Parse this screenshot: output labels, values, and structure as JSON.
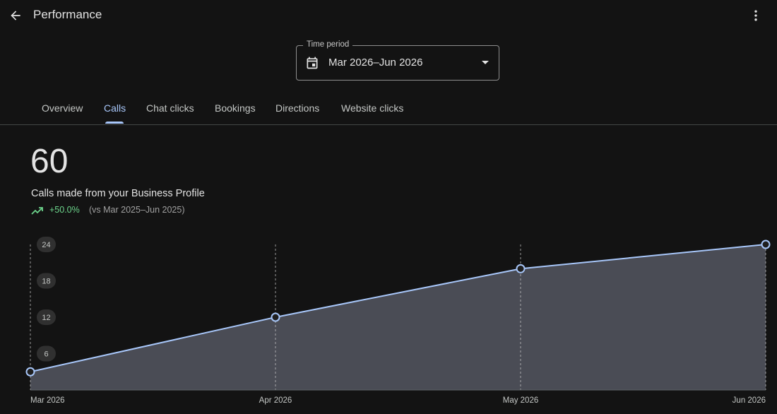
{
  "header": {
    "title": "Performance",
    "back_icon": "arrow-back-icon",
    "more_icon": "more-vert-icon"
  },
  "time_period": {
    "label": "Time period",
    "value": "Mar 2026–Jun 2026",
    "icon": "calendar-icon",
    "caret_icon": "dropdown-caret-icon"
  },
  "tabs": [
    {
      "label": "Overview",
      "active": false
    },
    {
      "label": "Calls",
      "active": true
    },
    {
      "label": "Chat clicks",
      "active": false
    },
    {
      "label": "Bookings",
      "active": false
    },
    {
      "label": "Directions",
      "active": false
    },
    {
      "label": "Website clicks",
      "active": false
    }
  ],
  "metric": {
    "value": "60",
    "caption": "Calls made from your Business Profile",
    "trend": "+50.0%",
    "comparison": "(vs Mar 2025–Jun 2025)",
    "trend_icon": "trending-up-icon"
  },
  "colors": {
    "accent": "#a8c7fa",
    "trend_positive": "#6dd58c",
    "area_fill": "#4a4c55",
    "background": "#131313"
  },
  "chart_data": {
    "type": "area",
    "categories": [
      "Mar 2026",
      "Apr 2026",
      "May 2026",
      "Jun 2026"
    ],
    "values": [
      3,
      12,
      20,
      24
    ],
    "yticks": [
      6,
      12,
      18,
      24
    ],
    "ylim": [
      0,
      24
    ],
    "grid": "vertical-dashed",
    "xlabel": "",
    "ylabel": ""
  }
}
